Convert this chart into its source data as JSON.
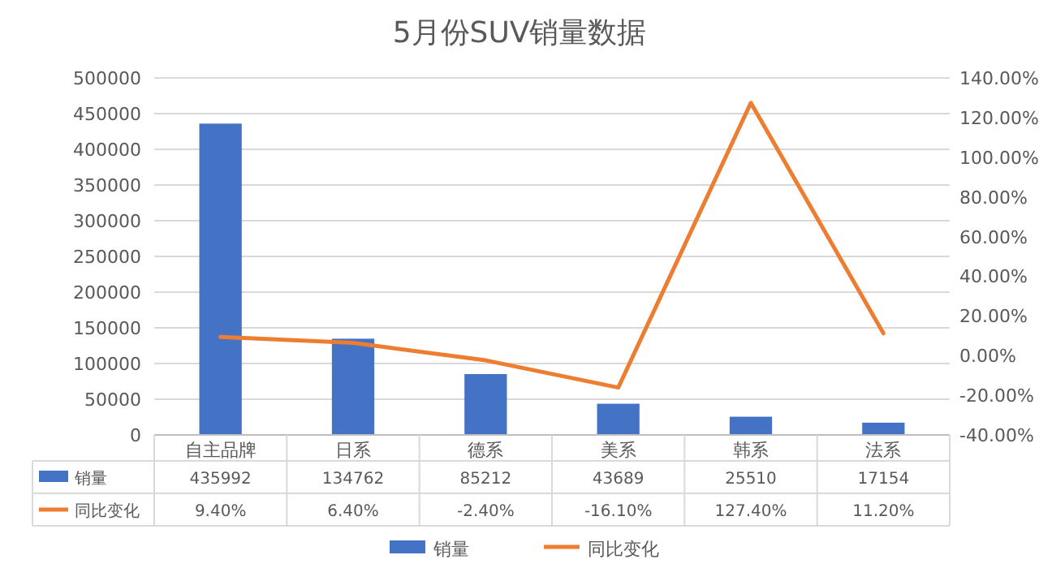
{
  "chart_data": {
    "type": "bar",
    "title": "5月份SUV销量数据",
    "categories": [
      "自主品牌",
      "日系",
      "德系",
      "美系",
      "韩系",
      "法系"
    ],
    "series": [
      {
        "name": "销量",
        "color": "#4472c4",
        "values": [
          435992,
          134762,
          85212,
          43689,
          25510,
          17154
        ],
        "value_labels": [
          "435992",
          "134762",
          "85212",
          "43689",
          "25510",
          "17154"
        ]
      },
      {
        "name": "同比变化",
        "type": "line",
        "axis": "y2",
        "color": "#ed7d31",
        "values": [
          9.4,
          6.4,
          -2.4,
          -16.1,
          127.4,
          11.2
        ],
        "value_labels": [
          "9.40%",
          "6.40%",
          "-2.40%",
          "-16.10%",
          "127.40%",
          "11.20%"
        ]
      }
    ],
    "ylim": [
      0,
      500000
    ],
    "yticks": [
      0,
      50000,
      100000,
      150000,
      200000,
      250000,
      300000,
      350000,
      400000,
      450000,
      500000
    ],
    "y2lim": [
      -40,
      140
    ],
    "y2ticks": [
      {
        "value": -40,
        "label": "-40.00%"
      },
      {
        "value": -20,
        "label": "-20.00%"
      },
      {
        "value": 0,
        "label": "0.00%"
      },
      {
        "value": 20,
        "label": "20.00%"
      },
      {
        "value": 40,
        "label": "40.00%"
      },
      {
        "value": 60,
        "label": "60.00%"
      },
      {
        "value": 80,
        "label": "80.00%"
      },
      {
        "value": 100,
        "label": "100.00%"
      },
      {
        "value": 120,
        "label": "120.00%"
      },
      {
        "value": 140,
        "label": "140.00%"
      }
    ],
    "grid": "y",
    "legend": "bottom",
    "marker": "none",
    "line_style": "solid"
  }
}
